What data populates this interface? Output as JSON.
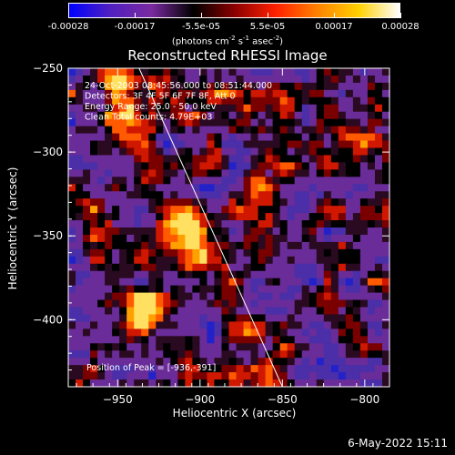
{
  "colorbar": {
    "ticks": [
      "-0.00028",
      "-0.00017",
      "-5.5e-05",
      "5.5e-05",
      "0.00017",
      "0.00028"
    ],
    "units_text": "(photons cm",
    "units_sup1": "-2",
    "units_mid": " s",
    "units_sup2": "-1",
    "units_end": " asec",
    "units_sup3": "-2",
    "units_close": ")",
    "colors": [
      "#0000ff",
      "#5020c0",
      "#7a2aa0",
      "#000000",
      "#8a0000",
      "#ff2000",
      "#ff8000",
      "#ffd000",
      "#ffffff"
    ]
  },
  "chart_data": {
    "type": "heatmap",
    "title": "Reconstructed RHESSI Image",
    "xlabel": "Heliocentric X (arcsec)",
    "ylabel": "Heliocentric Y (arcsec)",
    "xlim": [
      -980,
      -785
    ],
    "ylim": [
      -440,
      -250
    ],
    "xticks": [
      -950,
      -900,
      -850,
      -800
    ],
    "yticks": [
      -250,
      -300,
      -350,
      -400
    ],
    "xtick_labels": [
      "−950",
      "−900",
      "−850",
      "−800"
    ],
    "ytick_labels": [
      "−250",
      "−300",
      "−350",
      "−400"
    ],
    "limb_line": [
      [
        -937,
        -250
      ],
      [
        -850,
        -440
      ]
    ],
    "peak": [
      -936,
      -391
    ],
    "annotations": [
      "24-Oct-2003 08:45:56.000 to 08:51:44.000",
      "Detectors: 3F 4F 5F 6F 7F 8F, Att 0",
      "Energy Range: 25.0 - 50.0 keV",
      "Clean     Total counts: 4.79E+03"
    ],
    "peak_label": "Position of Peak = [-936,-391]"
  },
  "footer": {
    "datestamp": "6-May-2022 15:11"
  }
}
